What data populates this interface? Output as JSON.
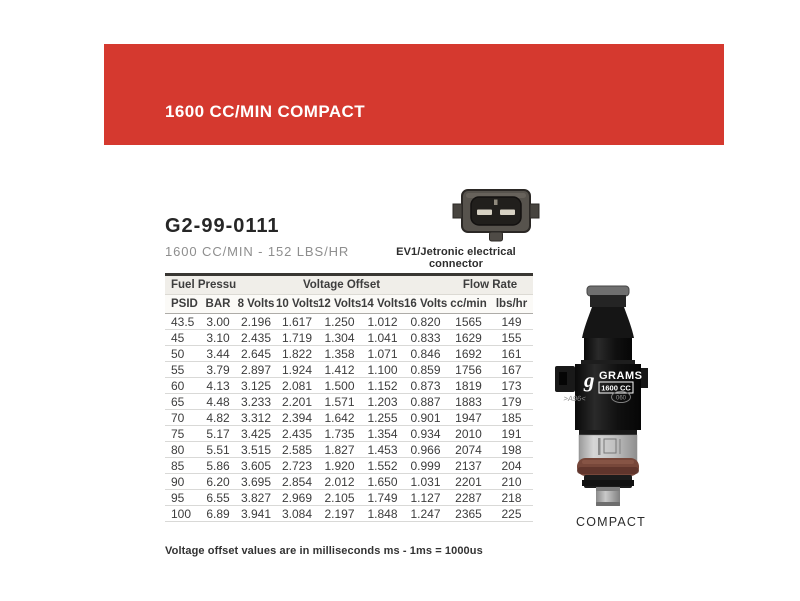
{
  "banner": {
    "title": "1600 CC/MIN COMPACT"
  },
  "product": {
    "part_number": "G2-99-0111",
    "subtitle": "1600 CC/MIN - 152 LBS/HR",
    "connector_label": "EV1/Jetronic electrical connector",
    "injector_caption": "COMPACT",
    "injector_brand": "GRAMS",
    "injector_brand_logo": "g",
    "injector_size": "1600 CC",
    "injector_marking_left": ">A96<",
    "injector_marking_right": "060"
  },
  "table": {
    "group_headers": [
      {
        "label": "Fuel Pressure"
      },
      {
        "label": "Voltage Offset"
      },
      {
        "label": "Flow Rate"
      }
    ],
    "columns": [
      "PSID",
      "BAR",
      "8 Volts",
      "10 Volts",
      "12 Volts",
      "14 Volts",
      "16 Volts",
      "cc/min",
      "lbs/hr"
    ],
    "rows": [
      [
        "43.5",
        "3.00",
        "2.196",
        "1.617",
        "1.250",
        "1.012",
        "0.820",
        "1565",
        "149"
      ],
      [
        "45",
        "3.10",
        "2.435",
        "1.719",
        "1.304",
        "1.041",
        "0.833",
        "1629",
        "155"
      ],
      [
        "50",
        "3.44",
        "2.645",
        "1.822",
        "1.358",
        "1.071",
        "0.846",
        "1692",
        "161"
      ],
      [
        "55",
        "3.79",
        "2.897",
        "1.924",
        "1.412",
        "1.100",
        "0.859",
        "1756",
        "167"
      ],
      [
        "60",
        "4.13",
        "3.125",
        "2.081",
        "1.500",
        "1.152",
        "0.873",
        "1819",
        "173"
      ],
      [
        "65",
        "4.48",
        "3.233",
        "2.201",
        "1.571",
        "1.203",
        "0.887",
        "1883",
        "179"
      ],
      [
        "70",
        "4.82",
        "3.312",
        "2.394",
        "1.642",
        "1.255",
        "0.901",
        "1947",
        "185"
      ],
      [
        "75",
        "5.17",
        "3.425",
        "2.435",
        "1.735",
        "1.354",
        "0.934",
        "2010",
        "191"
      ],
      [
        "80",
        "5.51",
        "3.515",
        "2.585",
        "1.827",
        "1.453",
        "0.966",
        "2074",
        "198"
      ],
      [
        "85",
        "5.86",
        "3.605",
        "2.723",
        "1.920",
        "1.552",
        "0.999",
        "2137",
        "204"
      ],
      [
        "90",
        "6.20",
        "3.695",
        "2.854",
        "2.012",
        "1.650",
        "1.031",
        "2201",
        "210"
      ],
      [
        "95",
        "6.55",
        "3.827",
        "2.969",
        "2.105",
        "1.749",
        "1.127",
        "2287",
        "218"
      ],
      [
        "100",
        "6.89",
        "3.941",
        "3.084",
        "2.197",
        "1.848",
        "1.247",
        "2365",
        "225"
      ]
    ]
  },
  "footnote": "Voltage offset values are in milliseconds ms - 1ms = 1000us",
  "colors": {
    "banner_red": "#D5392F",
    "table_header_bg": "#F0EEE9",
    "oring_brown": "#77473A",
    "connector_slot": "#D8D2C4"
  }
}
